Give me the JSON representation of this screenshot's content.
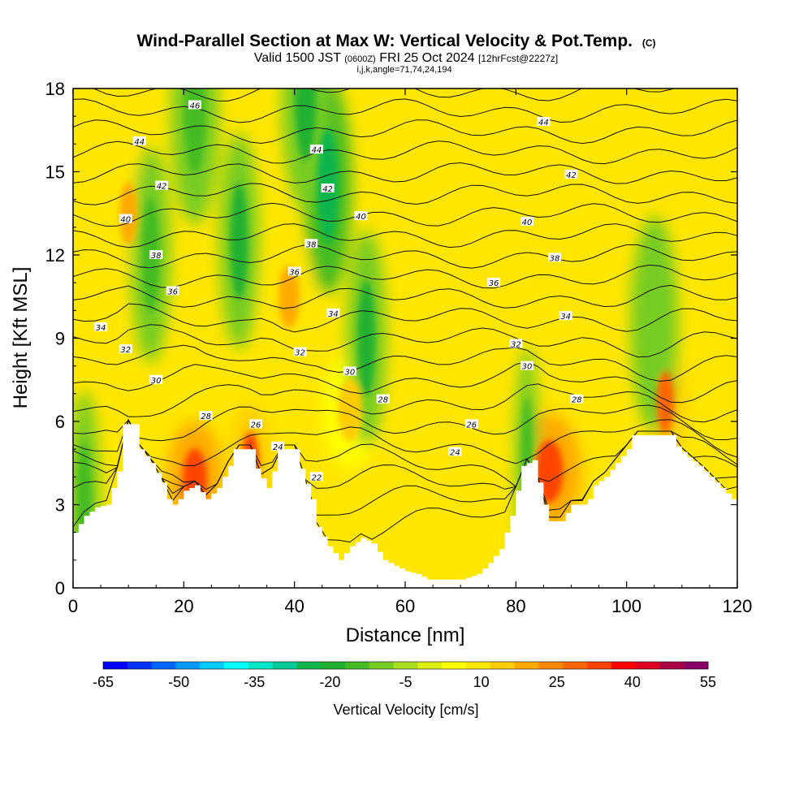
{
  "chart_data": {
    "type": "heatmap",
    "title": "Wind-Parallel Section at Max W: Vertical Velocity & Pot.Temp.",
    "title_mark": "(C)",
    "subtitle_valid": "Valid 1500 JST",
    "subtitle_utc": "(0600Z)",
    "subtitle_date": "FRI 25 Oct 2024",
    "subtitle_fcst": "[12hrFcst@2227z]",
    "subtitle_params": "i,j,k,angle=71,74,24,194",
    "xlabel": "Distance [nm]",
    "ylabel": "Height [Kft MSL]",
    "xlim": [
      0,
      120
    ],
    "ylim": [
      0,
      18
    ],
    "x_ticks": [
      0,
      20,
      40,
      60,
      80,
      100,
      120
    ],
    "x_tick_labels": [
      "0",
      "20",
      "40",
      "60",
      "80",
      "100",
      "120"
    ],
    "y_ticks": [
      0,
      3,
      6,
      9,
      12,
      15,
      18
    ],
    "y_tick_labels": [
      "0",
      "3",
      "6",
      "9",
      "12",
      "15",
      "18"
    ],
    "colorbar": {
      "label": "Vertical Velocity [cm/s]",
      "min": -65,
      "max": 55,
      "step": 5,
      "tick_values": [
        -65,
        -50,
        -35,
        -20,
        -5,
        10,
        25,
        40,
        55
      ],
      "tick_labels": [
        "-65",
        "-50",
        "-35",
        "-20",
        "-5",
        "10",
        "25",
        "40",
        "55"
      ],
      "colors": [
        "#0000ff",
        "#0033ff",
        "#0066ff",
        "#0099ff",
        "#00ccff",
        "#00ffff",
        "#00e6c8",
        "#00cc99",
        "#11b64d",
        "#22b030",
        "#44bb22",
        "#77cc22",
        "#aadd22",
        "#ddee11",
        "#ffff00",
        "#ffe600",
        "#ffcc00",
        "#ffaa00",
        "#ff8800",
        "#ff6600",
        "#ff4400",
        "#ff0000",
        "#dd0022",
        "#aa0044",
        "#880066"
      ]
    },
    "terrain_kft": [
      [
        0,
        2.0
      ],
      [
        2,
        2.6
      ],
      [
        4,
        2.9
      ],
      [
        6,
        3.0
      ],
      [
        8,
        4.2
      ],
      [
        9,
        5.9
      ],
      [
        11,
        5.9
      ],
      [
        12,
        5.0
      ],
      [
        14,
        4.5
      ],
      [
        16,
        3.8
      ],
      [
        17,
        3.2
      ],
      [
        18,
        3.0
      ],
      [
        19,
        3.2
      ],
      [
        20,
        3.5
      ],
      [
        21,
        3.6
      ],
      [
        22,
        3.7
      ],
      [
        24,
        3.2
      ],
      [
        26,
        3.6
      ],
      [
        28,
        4.4
      ],
      [
        29,
        5.0
      ],
      [
        32,
        5.0
      ],
      [
        33,
        4.3
      ],
      [
        35,
        3.6
      ],
      [
        36,
        4.2
      ],
      [
        37,
        5.0
      ],
      [
        40,
        5.0
      ],
      [
        41,
        4.3
      ],
      [
        43,
        3.2
      ],
      [
        44,
        2.2
      ],
      [
        46,
        1.5
      ],
      [
        48,
        1.0
      ],
      [
        50,
        1.5
      ],
      [
        52,
        1.8
      ],
      [
        54,
        1.6
      ],
      [
        56,
        1.0
      ],
      [
        58,
        0.8
      ],
      [
        60,
        0.6
      ],
      [
        62,
        0.5
      ],
      [
        64,
        0.3
      ],
      [
        66,
        0.3
      ],
      [
        70,
        0.3
      ],
      [
        73,
        0.5
      ],
      [
        75,
        0.9
      ],
      [
        77,
        1.4
      ],
      [
        79,
        2.6
      ],
      [
        80,
        3.5
      ],
      [
        81,
        4.4
      ],
      [
        83,
        4.6
      ],
      [
        85,
        3.0
      ],
      [
        86,
        2.4
      ],
      [
        88,
        2.4
      ],
      [
        90,
        3.0
      ],
      [
        92,
        3.0
      ],
      [
        93,
        3.2
      ],
      [
        94,
        3.7
      ],
      [
        96,
        4.0
      ],
      [
        98,
        4.5
      ],
      [
        100,
        5.0
      ],
      [
        101,
        5.5
      ],
      [
        107,
        5.5
      ],
      [
        108,
        5.5
      ],
      [
        109,
        5.1
      ],
      [
        111,
        4.7
      ],
      [
        113,
        4.4
      ],
      [
        115,
        4.0
      ],
      [
        117,
        3.6
      ],
      [
        119,
        3.2
      ],
      [
        120,
        3.5
      ]
    ],
    "updrafts": [
      {
        "x": 22,
        "y": 3.9,
        "w": 3.5,
        "peak": 38
      },
      {
        "x": 32,
        "y": 4.5,
        "w": 2.5,
        "peak": 35
      },
      {
        "x": 86,
        "y": 4.2,
        "w": 4.0,
        "peak": 38
      },
      {
        "x": 107,
        "y": 6.7,
        "w": 2.5,
        "peak": 30
      },
      {
        "x": 39,
        "y": 10.5,
        "w": 3.0,
        "peak": 20
      },
      {
        "x": 50,
        "y": 6.4,
        "w": 3.5,
        "peak": 18
      },
      {
        "x": 10,
        "y": 13.5,
        "w": 2.5,
        "peak": 20
      }
    ],
    "downdrafts": [
      {
        "x": 46,
        "y": 14.5,
        "w": 3.0,
        "peak": -22
      },
      {
        "x": 42,
        "y": 17.5,
        "w": 3.0,
        "peak": -18
      },
      {
        "x": 53,
        "y": 9.0,
        "w": 2.5,
        "peak": -18
      },
      {
        "x": 30,
        "y": 12.5,
        "w": 2.5,
        "peak": -16
      },
      {
        "x": 22,
        "y": 17.0,
        "w": 3.0,
        "peak": -14
      },
      {
        "x": 2,
        "y": 3.2,
        "w": 2.0,
        "peak": -14
      },
      {
        "x": 82,
        "y": 4.8,
        "w": 1.5,
        "peak": -14
      },
      {
        "x": 105,
        "y": 9.5,
        "w": 3.0,
        "peak": -10
      },
      {
        "x": 14,
        "y": 12.0,
        "w": 2.5,
        "peak": -12
      }
    ],
    "theta_labels": [
      {
        "x": 22,
        "y": 17.4,
        "text": "46"
      },
      {
        "x": 12,
        "y": 16.1,
        "text": "44"
      },
      {
        "x": 44,
        "y": 15.8,
        "text": "44"
      },
      {
        "x": 85,
        "y": 16.8,
        "text": "44"
      },
      {
        "x": 16,
        "y": 14.5,
        "text": "42"
      },
      {
        "x": 46,
        "y": 14.4,
        "text": "42"
      },
      {
        "x": 90,
        "y": 14.9,
        "text": "42"
      },
      {
        "x": 9.5,
        "y": 13.3,
        "text": "40"
      },
      {
        "x": 52,
        "y": 13.4,
        "text": "40"
      },
      {
        "x": 82,
        "y": 13.2,
        "text": "40"
      },
      {
        "x": 15,
        "y": 12.0,
        "text": "38"
      },
      {
        "x": 43,
        "y": 12.4,
        "text": "38"
      },
      {
        "x": 87,
        "y": 11.9,
        "text": "38"
      },
      {
        "x": 40,
        "y": 11.4,
        "text": "36"
      },
      {
        "x": 18,
        "y": 10.7,
        "text": "36"
      },
      {
        "x": 76,
        "y": 11.0,
        "text": "36"
      },
      {
        "x": 47,
        "y": 9.9,
        "text": "34"
      },
      {
        "x": 5,
        "y": 9.4,
        "text": "34"
      },
      {
        "x": 89,
        "y": 9.8,
        "text": "34"
      },
      {
        "x": 9.5,
        "y": 8.6,
        "text": "32"
      },
      {
        "x": 41,
        "y": 8.5,
        "text": "32"
      },
      {
        "x": 80,
        "y": 8.8,
        "text": "32"
      },
      {
        "x": 15,
        "y": 7.5,
        "text": "30"
      },
      {
        "x": 50,
        "y": 7.8,
        "text": "30"
      },
      {
        "x": 82,
        "y": 8.0,
        "text": "30"
      },
      {
        "x": 56,
        "y": 6.8,
        "text": "28"
      },
      {
        "x": 24,
        "y": 6.2,
        "text": "28"
      },
      {
        "x": 91,
        "y": 6.8,
        "text": "28"
      },
      {
        "x": 33,
        "y": 5.9,
        "text": "26"
      },
      {
        "x": 72,
        "y": 5.9,
        "text": "26"
      },
      {
        "x": 37,
        "y": 5.1,
        "text": "24"
      },
      {
        "x": 69,
        "y": 4.9,
        "text": "24"
      },
      {
        "x": 44,
        "y": 4.0,
        "text": "22"
      }
    ]
  }
}
